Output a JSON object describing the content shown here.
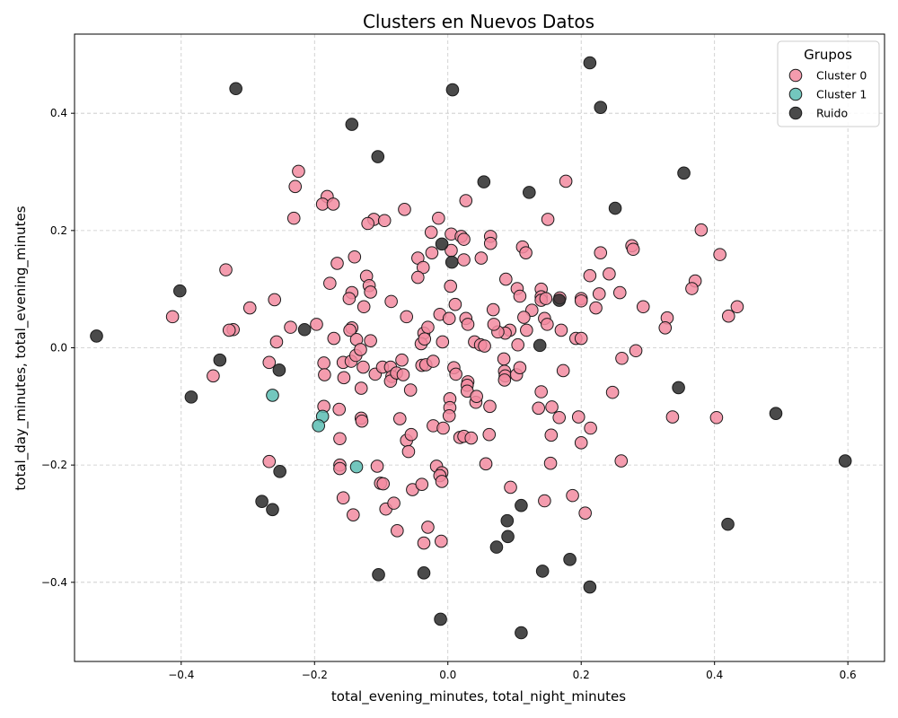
{
  "chart_data": {
    "type": "scatter",
    "title": "Clusters en Nuevos Datos",
    "xlabel": "total_evening_minutes, total_night_minutes",
    "ylabel": "total_day_minutes, total_evening_minutes",
    "xlim": [
      -0.56,
      0.655
    ],
    "ylim": [
      -0.535,
      0.535
    ],
    "xticks": [
      -0.4,
      -0.2,
      0.0,
      0.2,
      0.4,
      0.6
    ],
    "yticks": [
      -0.4,
      -0.2,
      0.0,
      0.2,
      0.4
    ],
    "xtick_labels": [
      "−0.4",
      "−0.2",
      "0.0",
      "0.2",
      "0.4",
      "0.6"
    ],
    "ytick_labels": [
      "−0.4",
      "−0.2",
      "0.0",
      "0.2",
      "0.4"
    ],
    "grid": true,
    "legend": {
      "title": "Grupos",
      "position": "top-right"
    },
    "series": [
      {
        "name": "Cluster 0",
        "color": "#f28ba0",
        "points": [
          [
            -0.224,
            0.301
          ],
          [
            -0.229,
            0.275
          ],
          [
            -0.181,
            0.258
          ],
          [
            -0.188,
            0.245
          ],
          [
            -0.172,
            0.245
          ],
          [
            -0.231,
            0.221
          ],
          [
            -0.111,
            0.219
          ],
          [
            -0.12,
            0.212
          ],
          [
            -0.095,
            0.217
          ],
          [
            -0.065,
            0.236
          ],
          [
            -0.014,
            0.221
          ],
          [
            0.027,
            0.251
          ],
          [
            -0.025,
            0.197
          ],
          [
            0.005,
            0.194
          ],
          [
            0.02,
            0.19
          ],
          [
            0.024,
            0.185
          ],
          [
            0.064,
            0.19
          ],
          [
            0.064,
            0.178
          ],
          [
            0.15,
            0.219
          ],
          [
            0.177,
            0.284
          ],
          [
            0.112,
            0.172
          ],
          [
            0.117,
            0.162
          ],
          [
            0.005,
            0.166
          ],
          [
            -0.024,
            0.162
          ],
          [
            -0.045,
            0.153
          ],
          [
            0.05,
            0.153
          ],
          [
            0.024,
            0.15
          ],
          [
            -0.166,
            0.144
          ],
          [
            -0.14,
            0.155
          ],
          [
            -0.333,
            0.133
          ],
          [
            -0.037,
            0.137
          ],
          [
            -0.045,
            0.12
          ],
          [
            -0.122,
            0.122
          ],
          [
            -0.118,
            0.106
          ],
          [
            -0.177,
            0.11
          ],
          [
            -0.116,
            0.095
          ],
          [
            -0.144,
            0.094
          ],
          [
            -0.148,
            0.084
          ],
          [
            -0.126,
            0.07
          ],
          [
            -0.085,
            0.079
          ],
          [
            -0.413,
            0.053
          ],
          [
            -0.297,
            0.068
          ],
          [
            -0.26,
            0.082
          ],
          [
            -0.322,
            0.031
          ],
          [
            -0.236,
            0.035
          ],
          [
            -0.197,
            0.04
          ],
          [
            -0.171,
            0.016
          ],
          [
            -0.257,
            0.01
          ],
          [
            -0.144,
            0.034
          ],
          [
            -0.147,
            0.03
          ],
          [
            -0.137,
            0.014
          ],
          [
            -0.116,
            0.012
          ],
          [
            -0.062,
            0.053
          ],
          [
            -0.012,
            0.057
          ],
          [
            0.002,
            0.05
          ],
          [
            0.004,
            0.105
          ],
          [
            0.011,
            0.074
          ],
          [
            0.027,
            0.05
          ],
          [
            0.03,
            0.04
          ],
          [
            0.068,
            0.065
          ],
          [
            0.087,
            0.117
          ],
          [
            0.104,
            0.101
          ],
          [
            0.108,
            0.088
          ],
          [
            0.14,
            0.1
          ],
          [
            0.14,
            0.087
          ],
          [
            0.14,
            0.081
          ],
          [
            0.147,
            0.084
          ],
          [
            0.168,
            0.085
          ],
          [
            0.145,
            0.05
          ],
          [
            0.149,
            0.04
          ],
          [
            0.126,
            0.064
          ],
          [
            0.114,
            0.052
          ],
          [
            0.118,
            0.03
          ],
          [
            0.093,
            0.03
          ],
          [
            0.086,
            0.025
          ],
          [
            0.075,
            0.027
          ],
          [
            0.069,
            0.04
          ],
          [
            0.04,
            0.01
          ],
          [
            0.049,
            0.005
          ],
          [
            0.055,
            0.003
          ],
          [
            -0.036,
            0.025
          ],
          [
            -0.03,
            0.035
          ],
          [
            -0.04,
            0.007
          ],
          [
            -0.035,
            0.015
          ],
          [
            -0.008,
            0.01
          ],
          [
            0.105,
            0.005
          ],
          [
            0.17,
            0.03
          ],
          [
            0.192,
            0.016
          ],
          [
            0.2,
            0.016
          ],
          [
            0.2,
            0.084
          ],
          [
            0.2,
            0.08
          ],
          [
            0.213,
            0.123
          ],
          [
            0.227,
            0.092
          ],
          [
            0.222,
            0.068
          ],
          [
            0.242,
            0.126
          ],
          [
            0.229,
            0.162
          ],
          [
            0.258,
            0.094
          ],
          [
            0.276,
            0.174
          ],
          [
            0.278,
            0.168
          ],
          [
            0.293,
            0.07
          ],
          [
            0.38,
            0.201
          ],
          [
            0.371,
            0.114
          ],
          [
            0.366,
            0.101
          ],
          [
            0.329,
            0.051
          ],
          [
            0.326,
            0.034
          ],
          [
            0.408,
            0.159
          ],
          [
            0.434,
            0.07
          ],
          [
            0.421,
            0.054
          ],
          [
            0.282,
            -0.005
          ],
          [
            0.261,
            -0.018
          ],
          [
            -0.352,
            -0.048
          ],
          [
            -0.268,
            -0.025
          ],
          [
            -0.186,
            -0.026
          ],
          [
            -0.157,
            -0.025
          ],
          [
            -0.145,
            -0.023
          ],
          [
            -0.138,
            -0.013
          ],
          [
            -0.131,
            -0.003
          ],
          [
            -0.185,
            -0.046
          ],
          [
            -0.156,
            -0.051
          ],
          [
            -0.127,
            -0.033
          ],
          [
            -0.109,
            -0.045
          ],
          [
            -0.098,
            -0.033
          ],
          [
            -0.086,
            -0.033
          ],
          [
            -0.084,
            -0.049
          ],
          [
            -0.086,
            -0.057
          ],
          [
            -0.077,
            -0.043
          ],
          [
            -0.069,
            -0.021
          ],
          [
            -0.067,
            -0.046
          ],
          [
            -0.039,
            -0.03
          ],
          [
            -0.033,
            -0.029
          ],
          [
            -0.022,
            -0.023
          ],
          [
            0.009,
            -0.034
          ],
          [
            0.012,
            -0.045
          ],
          [
            0.03,
            -0.058
          ],
          [
            0.029,
            -0.064
          ],
          [
            0.029,
            -0.074
          ],
          [
            0.042,
            -0.093
          ],
          [
            0.043,
            -0.083
          ],
          [
            0.084,
            -0.019
          ],
          [
            0.085,
            -0.04
          ],
          [
            0.086,
            -0.048
          ],
          [
            0.085,
            -0.055
          ],
          [
            0.103,
            -0.046
          ],
          [
            0.108,
            -0.034
          ],
          [
            0.173,
            -0.039
          ],
          [
            -0.13,
            -0.069
          ],
          [
            -0.056,
            -0.072
          ],
          [
            -0.186,
            -0.1
          ],
          [
            -0.163,
            -0.105
          ],
          [
            -0.13,
            -0.12
          ],
          [
            -0.129,
            -0.125
          ],
          [
            -0.072,
            -0.121
          ],
          [
            0.003,
            -0.087
          ],
          [
            0.003,
            -0.102
          ],
          [
            0.002,
            -0.116
          ],
          [
            0.063,
            -0.1
          ],
          [
            0.14,
            -0.075
          ],
          [
            0.136,
            -0.103
          ],
          [
            0.156,
            -0.101
          ],
          [
            0.167,
            -0.119
          ],
          [
            0.196,
            -0.118
          ],
          [
            0.214,
            -0.137
          ],
          [
            0.247,
            -0.076
          ],
          [
            0.337,
            -0.118
          ],
          [
            0.403,
            -0.119
          ],
          [
            -0.162,
            -0.155
          ],
          [
            -0.062,
            -0.158
          ],
          [
            -0.055,
            -0.148
          ],
          [
            -0.059,
            -0.177
          ],
          [
            -0.022,
            -0.133
          ],
          [
            -0.007,
            -0.137
          ],
          [
            0.018,
            -0.153
          ],
          [
            0.024,
            -0.151
          ],
          [
            0.035,
            -0.154
          ],
          [
            0.062,
            -0.148
          ],
          [
            0.155,
            -0.149
          ],
          [
            0.2,
            -0.162
          ],
          [
            -0.268,
            -0.194
          ],
          [
            -0.162,
            -0.2
          ],
          [
            -0.162,
            -0.206
          ],
          [
            -0.106,
            -0.202
          ],
          [
            -0.017,
            -0.202
          ],
          [
            -0.009,
            -0.213
          ],
          [
            -0.012,
            -0.218
          ],
          [
            -0.009,
            -0.228
          ],
          [
            0.057,
            -0.198
          ],
          [
            0.154,
            -0.197
          ],
          [
            0.26,
            -0.193
          ],
          [
            -0.157,
            -0.256
          ],
          [
            -0.142,
            -0.285
          ],
          [
            -0.101,
            -0.231
          ],
          [
            -0.097,
            -0.232
          ],
          [
            -0.093,
            -0.275
          ],
          [
            -0.081,
            -0.265
          ],
          [
            -0.076,
            -0.312
          ],
          [
            -0.053,
            -0.242
          ],
          [
            -0.039,
            -0.233
          ],
          [
            -0.03,
            -0.306
          ],
          [
            -0.036,
            -0.333
          ],
          [
            -0.01,
            -0.33
          ],
          [
            0.094,
            -0.238
          ],
          [
            0.145,
            -0.261
          ],
          [
            0.187,
            -0.252
          ],
          [
            0.206,
            -0.282
          ],
          [
            -0.328,
            0.03
          ]
        ]
      },
      {
        "name": "Cluster 1",
        "color": "#5bbdb3",
        "points": [
          [
            -0.263,
            -0.081
          ],
          [
            -0.188,
            -0.117
          ],
          [
            -0.194,
            -0.133
          ],
          [
            -0.137,
            -0.203
          ]
        ]
      },
      {
        "name": "Ruido",
        "color": "#2a2a2a",
        "points": [
          [
            0.213,
            0.486
          ],
          [
            -0.318,
            0.442
          ],
          [
            0.007,
            0.44
          ],
          [
            0.229,
            0.41
          ],
          [
            -0.144,
            0.381
          ],
          [
            -0.105,
            0.326
          ],
          [
            0.054,
            0.283
          ],
          [
            0.354,
            0.298
          ],
          [
            0.122,
            0.265
          ],
          [
            0.251,
            0.238
          ],
          [
            -0.009,
            0.177
          ],
          [
            0.006,
            0.146
          ],
          [
            0.167,
            0.081
          ],
          [
            -0.402,
            0.097
          ],
          [
            -0.527,
            0.02
          ],
          [
            -0.215,
            0.031
          ],
          [
            -0.342,
            -0.021
          ],
          [
            -0.253,
            -0.038
          ],
          [
            0.138,
            0.004
          ],
          [
            0.346,
            -0.068
          ],
          [
            -0.385,
            -0.084
          ],
          [
            0.492,
            -0.112
          ],
          [
            0.596,
            -0.193
          ],
          [
            -0.252,
            -0.211
          ],
          [
            -0.279,
            -0.262
          ],
          [
            -0.263,
            -0.276
          ],
          [
            0.11,
            -0.269
          ],
          [
            0.089,
            -0.295
          ],
          [
            0.42,
            -0.301
          ],
          [
            0.09,
            -0.322
          ],
          [
            0.073,
            -0.34
          ],
          [
            0.183,
            -0.361
          ],
          [
            -0.104,
            -0.387
          ],
          [
            -0.036,
            -0.384
          ],
          [
            0.142,
            -0.381
          ],
          [
            0.213,
            -0.408
          ],
          [
            -0.011,
            -0.463
          ],
          [
            0.11,
            -0.486
          ]
        ]
      }
    ]
  }
}
